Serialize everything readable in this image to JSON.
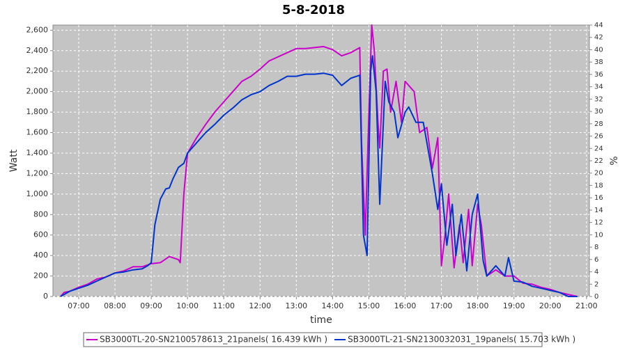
{
  "chart_data": {
    "type": "line",
    "title": "5-8-2018",
    "xlabel": "time",
    "ylabel": "Watt",
    "y2label": "%",
    "xlim": [
      6.29,
      21.08
    ],
    "xticks": [
      {
        "value": 7,
        "label": "07:00"
      },
      {
        "value": 8,
        "label": "08:00"
      },
      {
        "value": 9,
        "label": "09:00"
      },
      {
        "value": 10,
        "label": "10:00"
      },
      {
        "value": 11,
        "label": "11:00"
      },
      {
        "value": 12,
        "label": "12:00"
      },
      {
        "value": 13,
        "label": "13:00"
      },
      {
        "value": 14,
        "label": "14:00"
      },
      {
        "value": 15,
        "label": "15:00"
      },
      {
        "value": 16,
        "label": "16:00"
      },
      {
        "value": 17,
        "label": "17:00"
      },
      {
        "value": 18,
        "label": "18:00"
      },
      {
        "value": 19,
        "label": "19:00"
      },
      {
        "value": 20,
        "label": "20:00"
      },
      {
        "value": 21,
        "label": "21:00"
      }
    ],
    "ylim": [
      0,
      2650
    ],
    "yticks": [
      0,
      200,
      400,
      600,
      800,
      {
        "value": 1000,
        "label": "1,000"
      },
      {
        "value": 1200,
        "label": "1,200"
      },
      {
        "value": 1400,
        "label": "1,400"
      },
      {
        "value": 1600,
        "label": "1,600"
      },
      {
        "value": 1800,
        "label": "1,800"
      },
      {
        "value": 2000,
        "label": "2,000"
      },
      {
        "value": 2200,
        "label": "2,200"
      },
      {
        "value": 2400,
        "label": "2,400"
      },
      {
        "value": 2600,
        "label": "2,600"
      }
    ],
    "y2lim": [
      0,
      44
    ],
    "y2ticks": [
      0,
      2,
      4,
      6,
      8,
      10,
      12,
      14,
      16,
      18,
      20,
      22,
      24,
      26,
      28,
      30,
      32,
      34,
      36,
      38,
      40,
      42,
      44
    ],
    "grid": true,
    "legend": "bottom",
    "series": [
      {
        "name": "SB3000TL-20-SN2100578613_21panels( 16.439 kWh )",
        "color": "#cc00cc",
        "x": [
          6.5,
          6.6,
          6.75,
          7.0,
          7.25,
          7.5,
          7.75,
          8.0,
          8.25,
          8.5,
          8.75,
          9.0,
          9.25,
          9.5,
          9.75,
          9.8,
          9.9,
          10.0,
          10.25,
          10.5,
          10.75,
          11.0,
          11.25,
          11.5,
          11.75,
          12.0,
          12.25,
          12.5,
          12.75,
          13.0,
          13.25,
          13.5,
          13.75,
          14.0,
          14.25,
          14.5,
          14.75,
          14.8,
          14.9,
          15.0,
          15.08,
          15.15,
          15.25,
          15.3,
          15.4,
          15.5,
          15.6,
          15.75,
          15.9,
          16.0,
          16.25,
          16.4,
          16.6,
          16.75,
          16.9,
          17.0,
          17.1,
          17.2,
          17.35,
          17.5,
          17.6,
          17.75,
          17.85,
          18.0,
          18.1,
          18.25,
          18.5,
          18.75,
          19.0,
          19.25,
          19.5,
          19.75,
          20.0,
          20.25,
          20.5,
          20.75
        ],
        "values": [
          0,
          40,
          50,
          90,
          120,
          170,
          190,
          230,
          250,
          290,
          290,
          320,
          330,
          390,
          360,
          330,
          1000,
          1400,
          1550,
          1680,
          1800,
          1900,
          2000,
          2100,
          2150,
          2220,
          2300,
          2340,
          2380,
          2420,
          2420,
          2430,
          2440,
          2410,
          2350,
          2380,
          2430,
          1500,
          600,
          1800,
          2650,
          2400,
          1700,
          1450,
          2200,
          2220,
          1800,
          2100,
          1700,
          2100,
          2000,
          1600,
          1650,
          1250,
          1550,
          300,
          600,
          1000,
          280,
          700,
          330,
          850,
          300,
          900,
          700,
          200,
          260,
          200,
          200,
          130,
          120,
          90,
          70,
          40,
          20,
          0
        ]
      },
      {
        "name": "SB3000TL-21-SN2130032031_19panels( 15.703 kWh )",
        "color": "#0033cc",
        "x": [
          6.5,
          6.75,
          7.0,
          7.25,
          7.5,
          7.75,
          8.0,
          8.25,
          8.5,
          8.75,
          8.9,
          9.0,
          9.1,
          9.25,
          9.4,
          9.5,
          9.6,
          9.75,
          9.9,
          10.0,
          10.25,
          10.5,
          10.75,
          11.0,
          11.25,
          11.5,
          11.75,
          12.0,
          12.25,
          12.5,
          12.75,
          13.0,
          13.25,
          13.5,
          13.75,
          14.0,
          14.25,
          14.5,
          14.75,
          14.85,
          14.95,
          15.05,
          15.1,
          15.2,
          15.3,
          15.45,
          15.55,
          15.7,
          15.8,
          16.0,
          16.1,
          16.3,
          16.5,
          16.6,
          16.75,
          16.9,
          17.0,
          17.15,
          17.3,
          17.4,
          17.55,
          17.7,
          17.85,
          18.0,
          18.15,
          18.25,
          18.5,
          18.75,
          18.85,
          19.0,
          19.25,
          19.5,
          19.75,
          20.0,
          20.25,
          20.5,
          20.75
        ],
        "values": [
          0,
          50,
          80,
          110,
          150,
          190,
          230,
          240,
          260,
          270,
          300,
          330,
          700,
          950,
          1050,
          1060,
          1150,
          1260,
          1300,
          1400,
          1500,
          1600,
          1680,
          1770,
          1840,
          1920,
          1970,
          2000,
          2060,
          2100,
          2150,
          2150,
          2170,
          2170,
          2180,
          2160,
          2060,
          2130,
          2160,
          600,
          400,
          2200,
          2350,
          2000,
          900,
          2100,
          1900,
          1800,
          1550,
          1800,
          1850,
          1700,
          1700,
          1500,
          1200,
          850,
          1100,
          500,
          900,
          400,
          800,
          250,
          800,
          1000,
          350,
          200,
          300,
          200,
          380,
          150,
          140,
          100,
          80,
          60,
          40,
          0,
          0
        ]
      }
    ]
  }
}
